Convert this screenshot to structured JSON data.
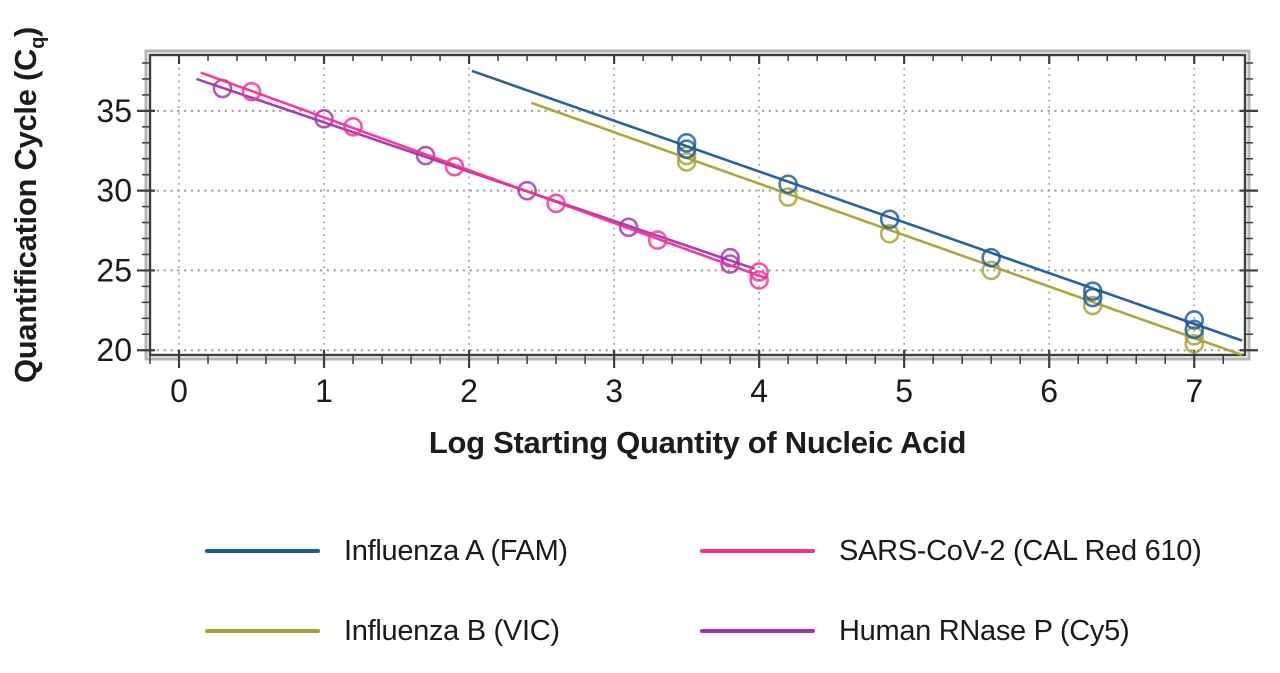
{
  "chart_data": {
    "type": "scatter",
    "title": "",
    "xlabel": "Log Starting Quantity of Nucleic Acid",
    "ylabel": {
      "pre": "Quantification Cycle (C",
      "sub": "q",
      "post": ")"
    },
    "xlim": [
      -0.2,
      7.35
    ],
    "ylim": [
      19.7,
      38.5
    ],
    "x_major_ticks": [
      0,
      1,
      2,
      3,
      4,
      5,
      6,
      7
    ],
    "x_minor_step": 0.2,
    "y_major_ticks": [
      20,
      25,
      30,
      35
    ],
    "y_minor_step": 1,
    "grid": "dotted-major-both-axes",
    "marker": "open-circle",
    "legend_position": "bottom-two-columns",
    "series": [
      {
        "name": "Influenza A (FAM)",
        "color": "#1d5a9b",
        "points": [
          [
            3.5,
            33.0
          ],
          [
            3.5,
            32.6
          ],
          [
            4.2,
            30.4
          ],
          [
            4.9,
            28.2
          ],
          [
            5.6,
            25.8
          ],
          [
            6.3,
            23.7
          ],
          [
            6.3,
            23.3
          ],
          [
            7.0,
            21.9
          ],
          [
            7.0,
            21.3
          ]
        ],
        "trend": [
          [
            2.02,
            37.5
          ],
          [
            7.33,
            20.6
          ]
        ]
      },
      {
        "name": "Influenza B (VIC)",
        "color": "#a7a233",
        "points": [
          [
            3.5,
            32.2
          ],
          [
            3.5,
            31.8
          ],
          [
            4.2,
            29.6
          ],
          [
            4.9,
            27.3
          ],
          [
            5.6,
            25.0
          ],
          [
            6.3,
            22.8
          ],
          [
            7.0,
            20.9
          ],
          [
            7.0,
            20.4
          ]
        ],
        "trend": [
          [
            2.43,
            35.5
          ],
          [
            7.33,
            19.7
          ]
        ]
      },
      {
        "name": "SARS-CoV-2 (CAL Red 610)",
        "color": "#f82f91",
        "points": [
          [
            0.5,
            36.2
          ],
          [
            1.2,
            34.0
          ],
          [
            1.9,
            31.5
          ],
          [
            2.6,
            29.2
          ],
          [
            3.3,
            26.9
          ],
          [
            4.0,
            24.9
          ],
          [
            4.0,
            24.4
          ]
        ],
        "trend": [
          [
            0.15,
            37.4
          ],
          [
            4.05,
            24.5
          ]
        ]
      },
      {
        "name": "Human RNase P (Cy5)",
        "color": "#a233b0",
        "points": [
          [
            0.3,
            36.4
          ],
          [
            1.0,
            34.5
          ],
          [
            1.7,
            32.2
          ],
          [
            2.4,
            30.0
          ],
          [
            3.1,
            27.7
          ],
          [
            3.8,
            25.8
          ],
          [
            3.8,
            25.4
          ]
        ],
        "trend": [
          [
            0.12,
            37.0
          ],
          [
            3.97,
            25.1
          ]
        ]
      }
    ]
  }
}
